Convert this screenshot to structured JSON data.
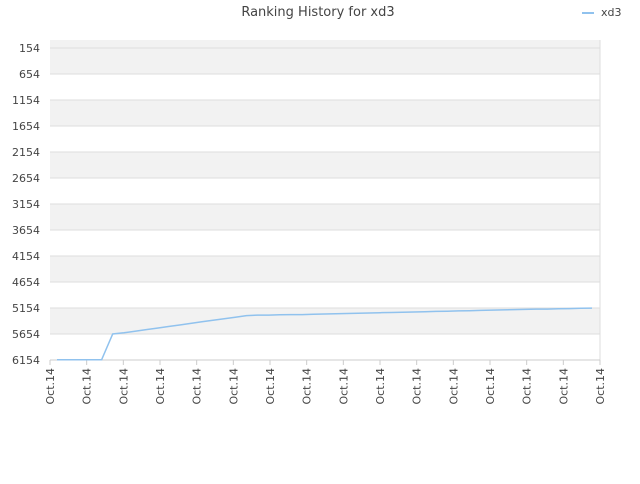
{
  "chart_data": {
    "type": "line",
    "title": "Ranking History for xd3",
    "xlabel": "",
    "ylabel": "",
    "legend": {
      "placement": "top-right",
      "entries": [
        "xd3"
      ]
    },
    "ylim": [
      6154,
      154
    ],
    "yticks": [
      "154",
      "654",
      "1154",
      "1654",
      "2154",
      "2654",
      "3154",
      "3654",
      "4154",
      "4654",
      "5154",
      "5654",
      "6154"
    ],
    "xticks": [
      "Oct.14",
      "Oct.14",
      "Oct.14",
      "Oct.14",
      "Oct.14",
      "Oct.14",
      "Oct.14",
      "Oct.14",
      "Oct.14",
      "Oct.14",
      "Oct.14",
      "Oct.14",
      "Oct.14",
      "Oct.14",
      "Oct.14",
      "Oct.14"
    ],
    "grid": true,
    "series": [
      {
        "name": "xd3",
        "color": "#90c2ee",
        "values": [
          6150,
          6150,
          6150,
          6150,
          6150,
          5654,
          5630,
          5600,
          5570,
          5540,
          5510,
          5480,
          5450,
          5420,
          5390,
          5360,
          5330,
          5300,
          5290,
          5290,
          5285,
          5280,
          5280,
          5275,
          5270,
          5265,
          5260,
          5255,
          5250,
          5245,
          5240,
          5235,
          5230,
          5225,
          5220,
          5215,
          5210,
          5205,
          5200,
          5195,
          5190,
          5185,
          5180,
          5175,
          5175,
          5170,
          5165,
          5160,
          5155
        ]
      }
    ]
  }
}
